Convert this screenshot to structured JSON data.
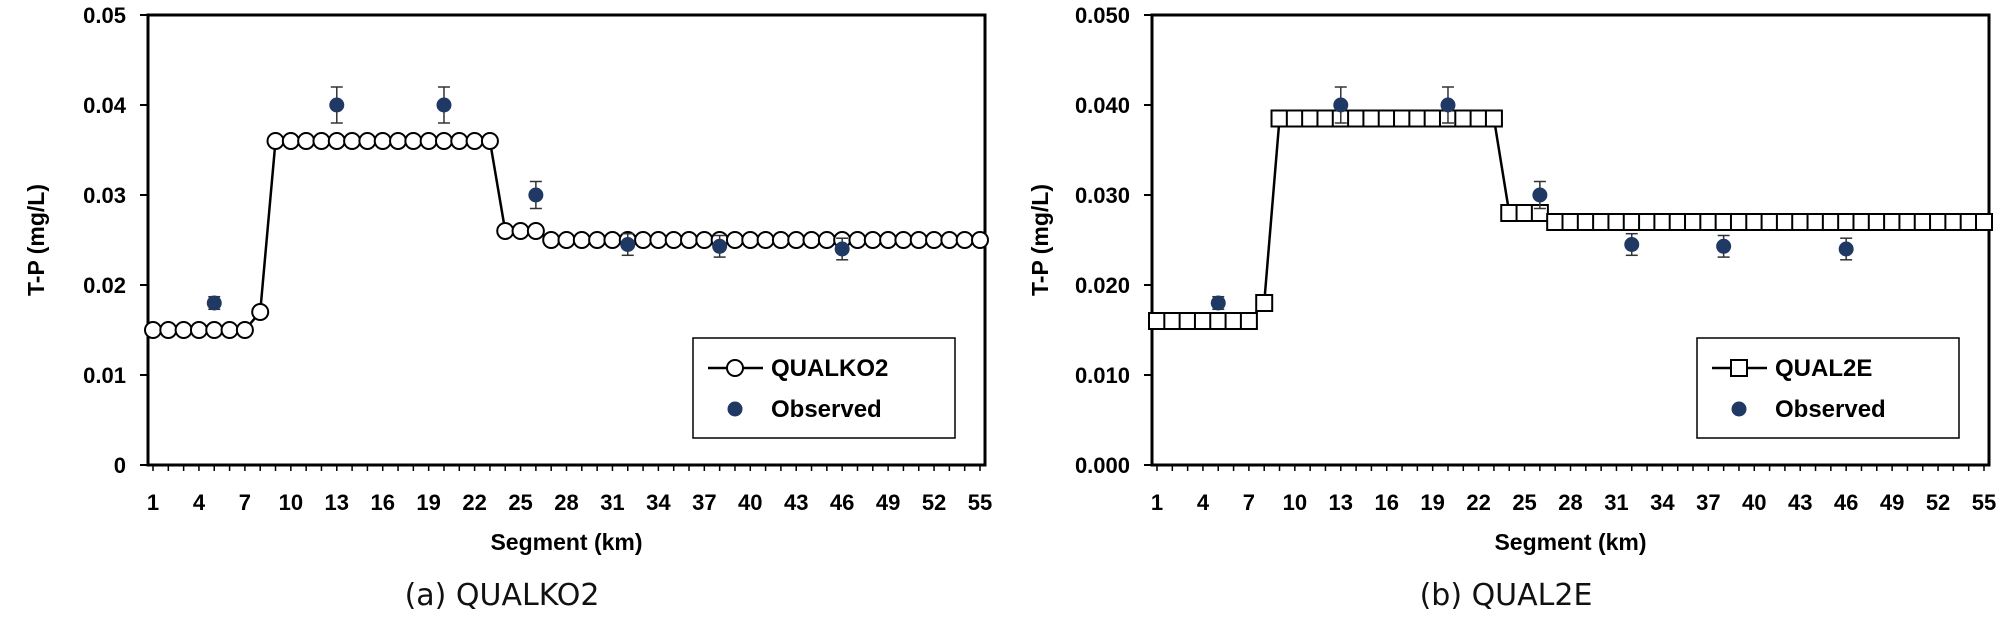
{
  "chart_data": [
    {
      "type": "line",
      "caption": "(a) QUALKO2",
      "xlabel": "Segment (km)",
      "ylabel": "T-P (mg/L)",
      "xlim": [
        1,
        55
      ],
      "ylim": [
        0,
        0.05
      ],
      "y_ticks": [
        "0",
        "0.01",
        "0.02",
        "0.03",
        "0.04",
        "0.05"
      ],
      "x_tick_labels": [
        "1",
        "4",
        "7",
        "10",
        "13",
        "16",
        "19",
        "22",
        "25",
        "28",
        "31",
        "34",
        "37",
        "40",
        "43",
        "46",
        "49",
        "52",
        "55"
      ],
      "grid": false,
      "legend_position": "bottom-right",
      "series": [
        {
          "name": "QUALKO2",
          "marker": "open-circle",
          "x": [
            1,
            2,
            3,
            4,
            5,
            6,
            7,
            8,
            9,
            10,
            11,
            12,
            13,
            14,
            15,
            16,
            17,
            18,
            19,
            20,
            21,
            22,
            23,
            24,
            25,
            26,
            27,
            28,
            29,
            30,
            31,
            32,
            33,
            34,
            35,
            36,
            37,
            38,
            39,
            40,
            41,
            42,
            43,
            44,
            45,
            46,
            47,
            48,
            49,
            50,
            51,
            52,
            53,
            54,
            55
          ],
          "y": [
            0.015,
            0.015,
            0.015,
            0.015,
            0.015,
            0.015,
            0.015,
            0.017,
            0.036,
            0.036,
            0.036,
            0.036,
            0.036,
            0.036,
            0.036,
            0.036,
            0.036,
            0.036,
            0.036,
            0.036,
            0.036,
            0.036,
            0.036,
            0.026,
            0.026,
            0.026,
            0.025,
            0.025,
            0.025,
            0.025,
            0.025,
            0.025,
            0.025,
            0.025,
            0.025,
            0.025,
            0.025,
            0.025,
            0.025,
            0.025,
            0.025,
            0.025,
            0.025,
            0.025,
            0.025,
            0.025,
            0.025,
            0.025,
            0.025,
            0.025,
            0.025,
            0.025,
            0.025,
            0.025,
            0.025
          ]
        },
        {
          "name": "Observed",
          "marker": "filled-circle",
          "x": [
            5,
            13,
            20,
            26,
            32,
            38,
            46
          ],
          "y": [
            0.018,
            0.04,
            0.04,
            0.03,
            0.0245,
            0.0243,
            0.024
          ],
          "error": [
            0.0007,
            0.002,
            0.002,
            0.0015,
            0.0012,
            0.0012,
            0.0012
          ]
        }
      ]
    },
    {
      "type": "line",
      "caption": "(b) QUAL2E",
      "xlabel": "Segment (km)",
      "ylabel": "T-P (mg/L)",
      "xlim": [
        1,
        55
      ],
      "ylim": [
        0,
        0.05
      ],
      "y_ticks": [
        "0.000",
        "0.010",
        "0.020",
        "0.030",
        "0.040",
        "0.050"
      ],
      "x_tick_labels": [
        "1",
        "4",
        "7",
        "10",
        "13",
        "16",
        "19",
        "22",
        "25",
        "28",
        "31",
        "34",
        "37",
        "40",
        "43",
        "46",
        "49",
        "52",
        "55"
      ],
      "grid": false,
      "legend_position": "bottom-right",
      "series": [
        {
          "name": "QUAL2E",
          "marker": "open-square",
          "x": [
            1,
            2,
            3,
            4,
            5,
            6,
            7,
            8,
            9,
            10,
            11,
            12,
            13,
            14,
            15,
            16,
            17,
            18,
            19,
            20,
            21,
            22,
            23,
            24,
            25,
            26,
            27,
            28,
            29,
            30,
            31,
            32,
            33,
            34,
            35,
            36,
            37,
            38,
            39,
            40,
            41,
            42,
            43,
            44,
            45,
            46,
            47,
            48,
            49,
            50,
            51,
            52,
            53,
            54,
            55
          ],
          "y": [
            0.016,
            0.016,
            0.016,
            0.016,
            0.016,
            0.016,
            0.016,
            0.018,
            0.0385,
            0.0385,
            0.0385,
            0.0385,
            0.0385,
            0.0385,
            0.0385,
            0.0385,
            0.0385,
            0.0385,
            0.0385,
            0.0385,
            0.0385,
            0.0385,
            0.0385,
            0.028,
            0.028,
            0.028,
            0.027,
            0.027,
            0.027,
            0.027,
            0.027,
            0.027,
            0.027,
            0.027,
            0.027,
            0.027,
            0.027,
            0.027,
            0.027,
            0.027,
            0.027,
            0.027,
            0.027,
            0.027,
            0.027,
            0.027,
            0.027,
            0.027,
            0.027,
            0.027,
            0.027,
            0.027,
            0.027,
            0.027,
            0.027
          ]
        },
        {
          "name": "Observed",
          "marker": "filled-circle",
          "x": [
            5,
            13,
            20,
            26,
            32,
            38,
            46
          ],
          "y": [
            0.018,
            0.04,
            0.04,
            0.03,
            0.0245,
            0.0243,
            0.024
          ],
          "error": [
            0.0007,
            0.002,
            0.002,
            0.0015,
            0.0012,
            0.0012,
            0.0012
          ]
        }
      ]
    }
  ],
  "colors": {
    "observed": "#1f3864",
    "line": "#000000",
    "marker_fill": "#ffffff"
  }
}
